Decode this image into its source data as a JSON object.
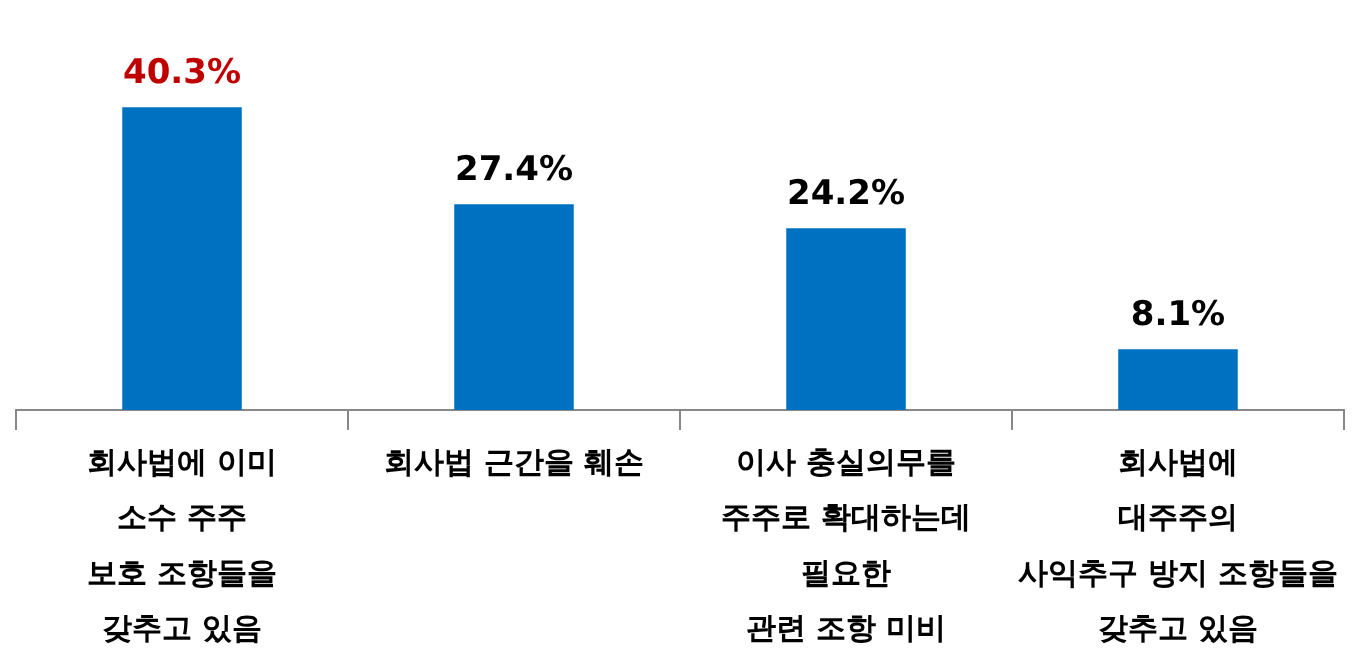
{
  "chart_data": {
    "type": "bar",
    "categories": [
      "회사법에 이미\n소수 주주\n보호 조항들을\n갖추고 있음",
      "회사법 근간을 훼손",
      "이사 충실의무를\n주주로 확대하는데\n필요한\n관련 조항 미비",
      "회사법에\n대주주의\n사익추구 방지 조항들을\n갖추고 있음"
    ],
    "values": [
      40.3,
      27.4,
      24.2,
      8.1
    ],
    "color": "#0070c0",
    "value_labels": [
      "40.3%",
      "27.4%",
      "24.2%",
      "8.1%"
    ],
    "grid": false,
    "legend": false
  }
}
